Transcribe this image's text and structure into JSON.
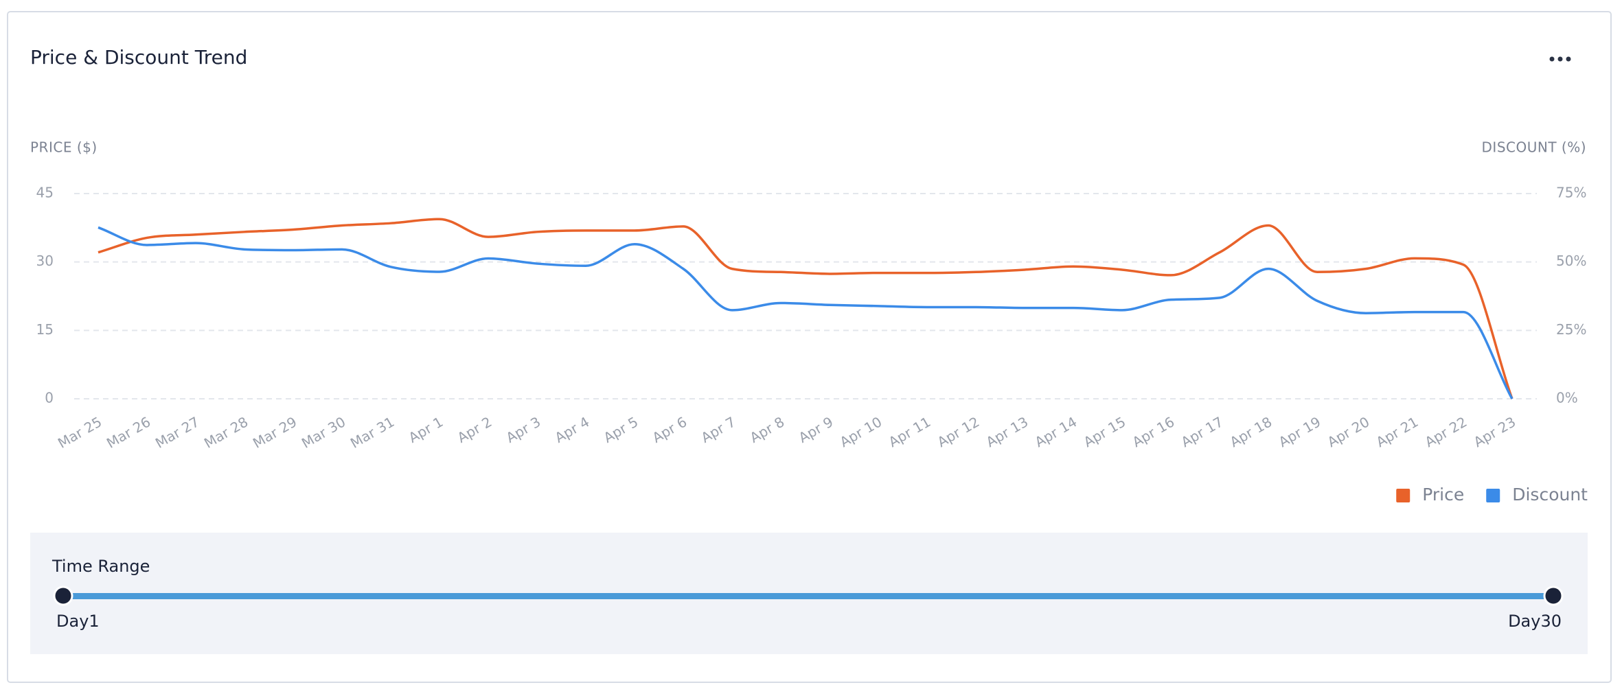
{
  "chart_data": {
    "type": "line",
    "title": "Price & Discount Trend",
    "y_label": "PRICE ($)",
    "y2_label": "DISCOUNT (%)",
    "categories": [
      "Mar 25",
      "Mar 26",
      "Mar 27",
      "Mar 28",
      "Mar 29",
      "Mar 30",
      "Mar 31",
      "Apr 1",
      "Apr 2",
      "Apr 3",
      "Apr 4",
      "Apr 5",
      "Apr 6",
      "Apr 7",
      "Apr 8",
      "Apr 9",
      "Apr 10",
      "Apr 11",
      "Apr 12",
      "Apr 13",
      "Apr 14",
      "Apr 15",
      "Apr 16",
      "Apr 17",
      "Apr 18",
      "Apr 19",
      "Apr 20",
      "Apr 21",
      "Apr 22",
      "Apr 23"
    ],
    "series": [
      {
        "name": "Price",
        "color": "#e8622a",
        "values": [
          32.1,
          35.3,
          36,
          36.6,
          37.1,
          38,
          38.5,
          39.4,
          35.5,
          36.6,
          36.9,
          36.9,
          37.8,
          28.5,
          27.8,
          27.4,
          27.6,
          27.6,
          27.8,
          28.3,
          29,
          28.3,
          27.1,
          32.1,
          38,
          27.8,
          28.5,
          30.8,
          29.4,
          0
        ]
      },
      {
        "name": "Discount",
        "color": "#3b8be8",
        "axis": "y2",
        "values": [
          62.6,
          56.2,
          56.9,
          54.6,
          54.3,
          54.6,
          48.2,
          46.4,
          51.3,
          49.4,
          48.6,
          56.5,
          47.5,
          32.4,
          35,
          34.3,
          33.9,
          33.5,
          33.5,
          33.2,
          33.2,
          32.4,
          36.2,
          36.9,
          47.5,
          35.8,
          31.3,
          31.7,
          31.7,
          0
        ]
      }
    ],
    "ylim": [
      0,
      45
    ],
    "yticks": [
      0,
      15,
      30,
      45
    ],
    "y2lim": [
      0,
      75
    ],
    "y2ticks": [
      {
        "value": 0,
        "label": "0%"
      },
      {
        "value": 25,
        "label": "25%"
      },
      {
        "value": 50,
        "label": "50%"
      },
      {
        "value": 75,
        "label": "75%"
      }
    ],
    "grid": true,
    "legend": "bottom-right"
  },
  "time_range": {
    "label": "Time Range",
    "start": "Day1",
    "end": "Day30"
  }
}
